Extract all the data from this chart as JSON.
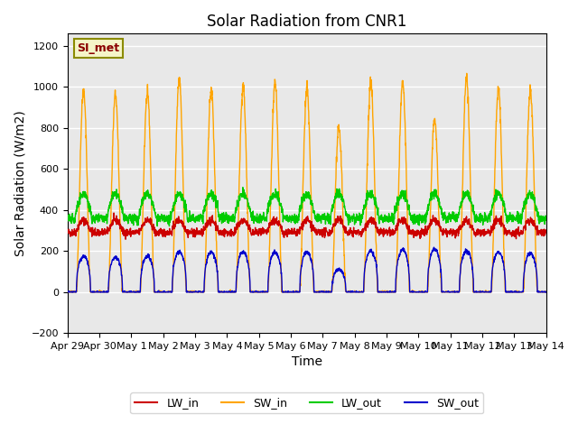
{
  "title": "Solar Radiation from CNR1",
  "xlabel": "Time",
  "ylabel": "Solar Radiation (W/m2)",
  "ylim": [
    -200,
    1260
  ],
  "yticks": [
    -200,
    0,
    200,
    400,
    600,
    800,
    1000,
    1200
  ],
  "x_tick_labels": [
    "Apr 29",
    "Apr 30",
    "May 1",
    "May 2",
    "May 3",
    "May 4",
    "May 5",
    "May 6",
    "May 7",
    "May 8",
    "May 9",
    "May 10",
    "May 11",
    "May 12",
    "May 13",
    "May 14"
  ],
  "x_tick_positions": [
    0,
    1,
    2,
    3,
    4,
    5,
    6,
    7,
    8,
    9,
    10,
    11,
    12,
    13,
    14,
    15
  ],
  "colors": {
    "LW_in": "#cc0000",
    "SW_in": "#ffa500",
    "LW_out": "#00cc00",
    "SW_out": "#0000cc",
    "background": "#e8e8e8",
    "grid": "#ffffff",
    "legend_box_bg": "#f5f5c8",
    "legend_box_border": "#8b8b00",
    "annotation_text": "#8b0000"
  },
  "annotation_label": "SI_met",
  "legend_labels": [
    "LW_in",
    "SW_in",
    "LW_out",
    "SW_out"
  ],
  "n_days": 15,
  "points_per_day": 144,
  "title_fontsize": 12,
  "axis_label_fontsize": 10,
  "tick_fontsize": 8,
  "peak_SW_in_vals": [
    980,
    965,
    970,
    1040,
    985,
    1000,
    1020,
    990,
    800,
    1020,
    1020,
    850,
    1040,
    990,
    980
  ],
  "peak_SW_out_vals": [
    175,
    170,
    175,
    195,
    195,
    195,
    195,
    195,
    110,
    200,
    205,
    210,
    200,
    195,
    190
  ]
}
